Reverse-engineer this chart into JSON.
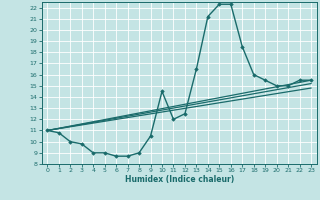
{
  "xlabel": "Humidex (Indice chaleur)",
  "xlim": [
    -0.5,
    23.5
  ],
  "ylim": [
    8,
    22.5
  ],
  "xticks": [
    0,
    1,
    2,
    3,
    4,
    5,
    6,
    7,
    8,
    9,
    10,
    11,
    12,
    13,
    14,
    15,
    16,
    17,
    18,
    19,
    20,
    21,
    22,
    23
  ],
  "yticks": [
    8,
    9,
    10,
    11,
    12,
    13,
    14,
    15,
    16,
    17,
    18,
    19,
    20,
    21,
    22
  ],
  "bg_color": "#c4e4e4",
  "grid_color": "#ffffff",
  "line_color": "#1a6b6b",
  "lines": [
    {
      "x": [
        0,
        1,
        2,
        3,
        4,
        5,
        6,
        7,
        8,
        9,
        10,
        11,
        12,
        13,
        14,
        15,
        16,
        17,
        18,
        19,
        20,
        21,
        22,
        23
      ],
      "y": [
        11,
        10.8,
        10,
        9.8,
        9,
        9,
        8.7,
        8.7,
        9,
        10.5,
        14.5,
        12,
        12.5,
        16.5,
        21.2,
        22.3,
        22.3,
        18.5,
        16,
        15.5,
        15,
        15,
        15.5,
        15.5
      ],
      "marker": "D",
      "markersize": 1.8,
      "linewidth": 1.0
    },
    {
      "x": [
        0,
        23
      ],
      "y": [
        11,
        15.5
      ],
      "marker": null,
      "linewidth": 0.9
    },
    {
      "x": [
        0,
        23
      ],
      "y": [
        11,
        15.2
      ],
      "marker": null,
      "linewidth": 0.9
    },
    {
      "x": [
        0,
        23
      ],
      "y": [
        11,
        14.8
      ],
      "marker": null,
      "linewidth": 0.9
    }
  ]
}
